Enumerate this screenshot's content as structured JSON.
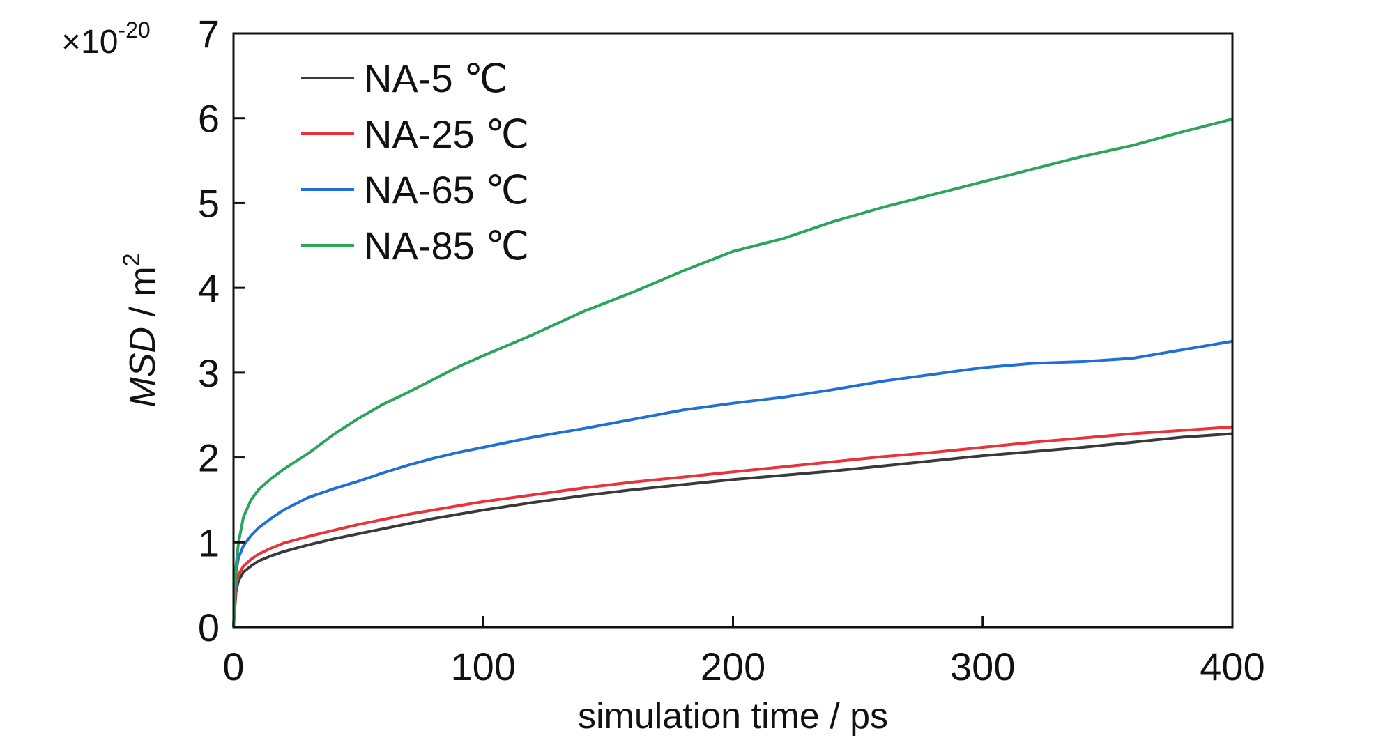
{
  "chart_data": {
    "type": "line",
    "xlabel": "simulation time / ps",
    "ylabel": {
      "main": "MSD",
      "unit": " / m",
      "sup": "2"
    },
    "y_multiplier": {
      "base": "×10",
      "exp": "-20"
    },
    "xlim": [
      0,
      400
    ],
    "ylim": [
      0,
      7
    ],
    "x_ticks": [
      0,
      100,
      200,
      300,
      400
    ],
    "y_ticks": [
      0,
      1,
      2,
      3,
      4,
      5,
      6,
      7
    ],
    "grid": false,
    "legend_position": "top-left",
    "series": [
      {
        "name": "NA-5 ℃",
        "color": "#3a3a3a",
        "x": [
          0,
          1,
          2,
          4,
          7,
          10,
          15,
          20,
          30,
          40,
          50,
          60,
          70,
          80,
          90,
          100,
          120,
          140,
          160,
          180,
          200,
          220,
          240,
          260,
          280,
          300,
          320,
          340,
          360,
          380,
          400
        ],
        "y": [
          0,
          0.42,
          0.55,
          0.65,
          0.72,
          0.78,
          0.84,
          0.89,
          0.97,
          1.04,
          1.1,
          1.16,
          1.22,
          1.28,
          1.33,
          1.38,
          1.47,
          1.55,
          1.62,
          1.68,
          1.74,
          1.79,
          1.84,
          1.9,
          1.96,
          2.02,
          2.07,
          2.12,
          2.18,
          2.24,
          2.28
        ]
      },
      {
        "name": "NA-25 ℃",
        "color": "#e8333a",
        "x": [
          0,
          1,
          2,
          4,
          7,
          10,
          15,
          20,
          30,
          40,
          50,
          60,
          70,
          80,
          90,
          100,
          120,
          140,
          160,
          180,
          200,
          220,
          240,
          260,
          280,
          300,
          320,
          340,
          360,
          380,
          400
        ],
        "y": [
          0,
          0.48,
          0.62,
          0.72,
          0.8,
          0.86,
          0.93,
          0.99,
          1.07,
          1.14,
          1.21,
          1.27,
          1.33,
          1.38,
          1.43,
          1.48,
          1.56,
          1.64,
          1.71,
          1.77,
          1.83,
          1.89,
          1.95,
          2.01,
          2.06,
          2.12,
          2.18,
          2.23,
          2.28,
          2.32,
          2.36
        ]
      },
      {
        "name": "NA-65 ℃",
        "color": "#1f6fd6",
        "x": [
          0,
          1,
          2,
          4,
          7,
          10,
          15,
          20,
          30,
          40,
          50,
          60,
          70,
          80,
          90,
          100,
          120,
          140,
          160,
          180,
          200,
          220,
          240,
          260,
          280,
          300,
          320,
          340,
          360,
          380,
          400
        ],
        "y": [
          0,
          0.65,
          0.82,
          0.96,
          1.08,
          1.17,
          1.28,
          1.38,
          1.53,
          1.63,
          1.72,
          1.82,
          1.91,
          1.99,
          2.06,
          2.12,
          2.24,
          2.34,
          2.45,
          2.56,
          2.64,
          2.71,
          2.8,
          2.9,
          2.98,
          3.06,
          3.11,
          3.13,
          3.17,
          3.27,
          3.37
        ]
      },
      {
        "name": "NA-85 ℃",
        "color": "#2aa55a",
        "x": [
          0,
          1,
          2,
          4,
          7,
          10,
          15,
          20,
          30,
          40,
          50,
          60,
          70,
          80,
          90,
          100,
          120,
          140,
          160,
          180,
          200,
          220,
          240,
          260,
          280,
          300,
          320,
          340,
          360,
          380,
          400
        ],
        "y": [
          0,
          0.72,
          1.0,
          1.3,
          1.5,
          1.62,
          1.75,
          1.86,
          2.05,
          2.27,
          2.46,
          2.63,
          2.77,
          2.92,
          3.07,
          3.2,
          3.45,
          3.72,
          3.95,
          4.2,
          4.43,
          4.58,
          4.78,
          4.95,
          5.1,
          5.25,
          5.4,
          5.55,
          5.68,
          5.84,
          5.99
        ]
      }
    ]
  }
}
